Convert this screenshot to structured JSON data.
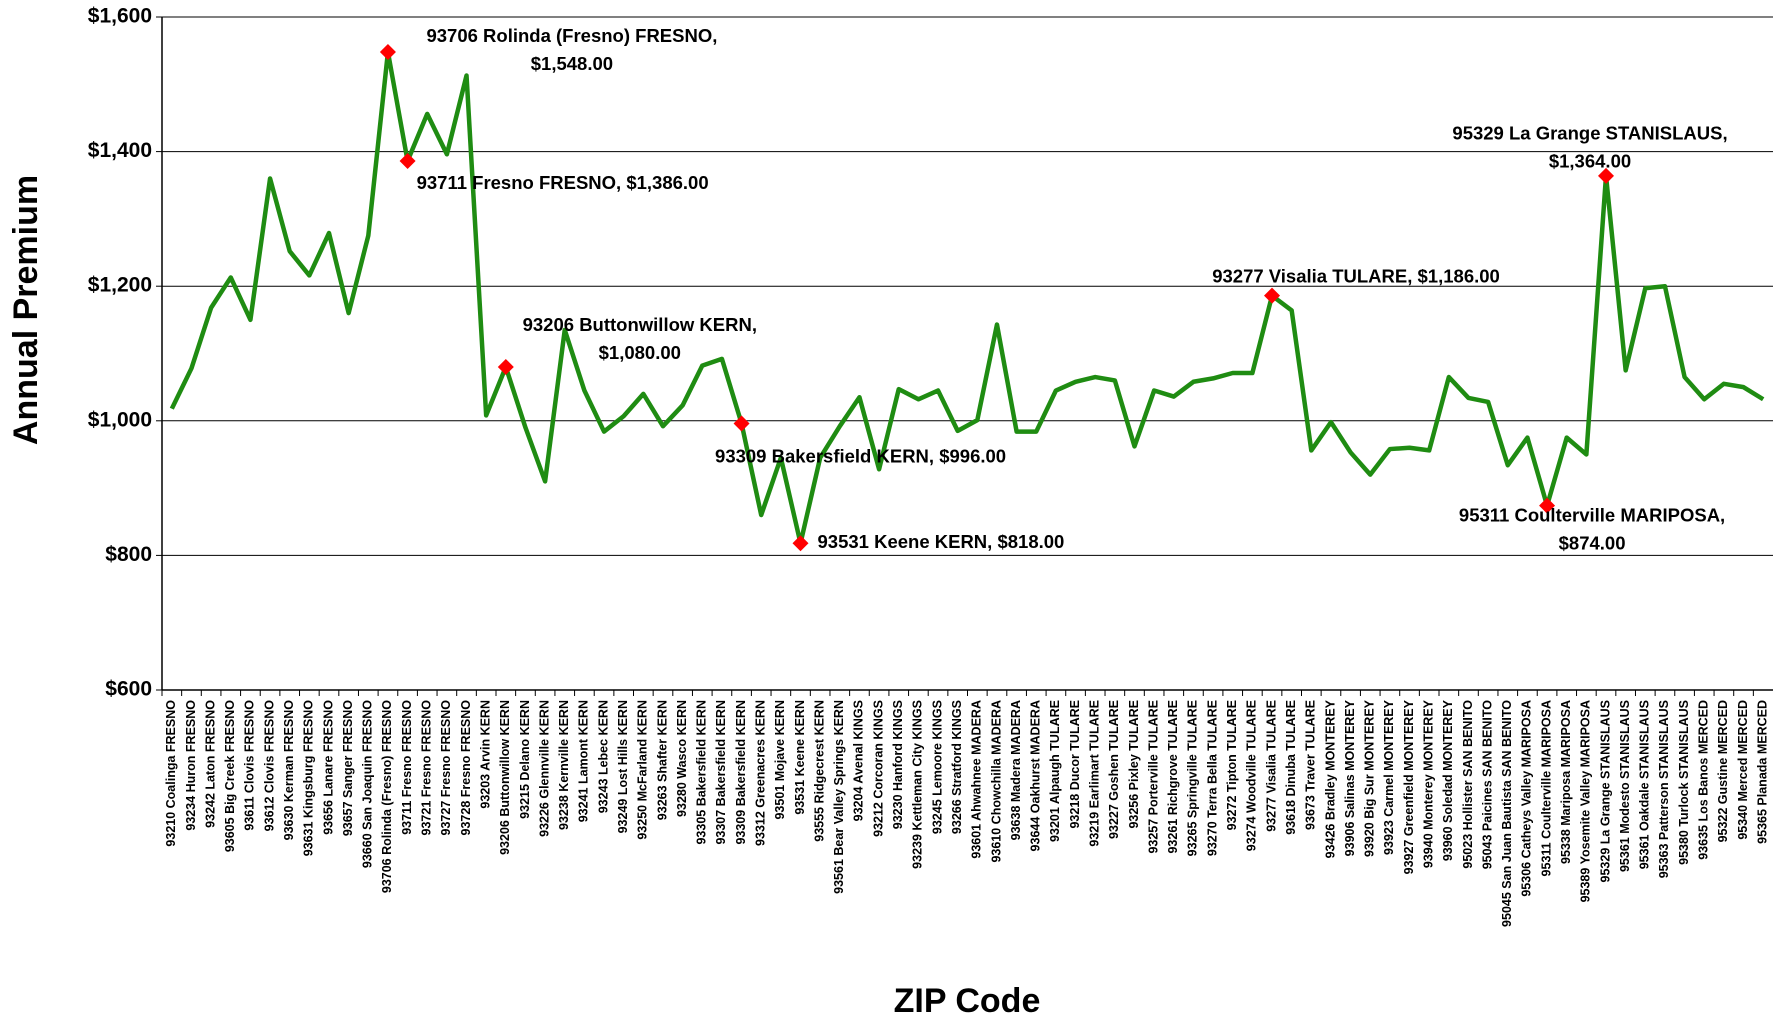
{
  "chart_data": {
    "type": "line",
    "xlabel": "ZIP Code",
    "ylabel": "Annual Premium",
    "ylim": [
      600,
      1600
    ],
    "yticks": [
      {
        "value": 600,
        "label": "$600"
      },
      {
        "value": 800,
        "label": "$800"
      },
      {
        "value": 1000,
        "label": "$1,000"
      },
      {
        "value": 1200,
        "label": "$1,200"
      },
      {
        "value": 1400,
        "label": "$1,400"
      },
      {
        "value": 1600,
        "label": "$1,600"
      }
    ],
    "grid": true,
    "color": "#1f8c12",
    "marker_color": "#ff0000",
    "categories": [
      "93210 Coalinga FRESNO",
      "93234 Huron FRESNO",
      "93242 Laton FRESNO",
      "93605 Big Creek FRESNO",
      "93611 Clovis FRESNO",
      "93612 Clovis FRESNO",
      "93630 Kerman FRESNO",
      "93631 Kingsburg FRESNO",
      "93656 Lanare FRESNO",
      "93657 Sanger FRESNO",
      "93660 San Joaquin FRESNO",
      "93706 Rolinda (Fresno) FRESNO",
      "93711 Fresno FRESNO",
      "93721 Fresno FRESNO",
      "93727 Fresno FRESNO",
      "93728 Fresno FRESNO",
      "93203 Arvin KERN",
      "93206 Buttonwillow KERN",
      "93215 Delano KERN",
      "93226 Glennville KERN",
      "93238 Kernville KERN",
      "93241 Lamont KERN",
      "93243 Lebec KERN",
      "93249 Lost Hills KERN",
      "93250 McFarland KERN",
      "93263 Shafter KERN",
      "93280 Wasco KERN",
      "93305 Bakersfield KERN",
      "93307 Bakersfield KERN",
      "93309 Bakersfield KERN",
      "93312 Greenacres KERN",
      "93501 Mojave KERN",
      "93531 Keene KERN",
      "93555 Ridgecrest KERN",
      "93561 Bear Valley Springs KERN",
      "93204 Avenal KINGS",
      "93212 Corcoran KINGS",
      "93230 Hanford KINGS",
      "93239 Kettleman City KINGS",
      "93245 Lemoore KINGS",
      "93266 Stratford KINGS",
      "93601 Ahwahnee MADERA",
      "93610 Chowchilla MADERA",
      "93638 Madera MADERA",
      "93644 Oakhurst MADERA",
      "93201 Alpaugh TULARE",
      "93218 Ducor TULARE",
      "93219 Earlimart TULARE",
      "93227 Goshen TULARE",
      "93256 Pixley TULARE",
      "93257 Porterville TULARE",
      "93261 Richgrove TULARE",
      "93265 Springville TULARE",
      "93270 Terra Bella TULARE",
      "93272 Tipton TULARE",
      "93274 Woodville TULARE",
      "93277 Visalia TULARE",
      "93618 Dinuba TULARE",
      "93673 Traver TULARE",
      "93426 Bradley MONTEREY",
      "93906 Salinas MONTEREY",
      "93920 Big Sur MONTEREY",
      "93923 Carmel MONTEREY",
      "93927 Greenfield MONTEREY",
      "93940 Monterey MONTEREY",
      "93960 Soledad MONTEREY",
      "95023 Hollister SAN BENITO",
      "95043 Paicines SAN BENITO",
      "95045 San Juan Bautista SAN BENITO",
      "95306 Catheys Valley MARIPOSA",
      "95311 Coulterville MARIPOSA",
      "95338 Mariposa MARIPOSA",
      "95389 Yosemite Valley MARIPOSA",
      "95329 La Grange STANISLAUS",
      "95361 Modesto STANISLAUS",
      "95361 Oakdale STANISLAUS",
      "95363 Patterson STANISLAUS",
      "95380 Turlock STANISLAUS",
      "93635 Los Banos MERCED",
      "95322 Gustine MERCED",
      "95340 Merced MERCED",
      "95365 Planada MERCED"
    ],
    "values": [
      1018,
      1078,
      1168,
      1213,
      1150,
      1360,
      1252,
      1216,
      1279,
      1160,
      1275,
      1548,
      1386,
      1456,
      1396,
      1513,
      1008,
      1080,
      990,
      910,
      1135,
      1045,
      984,
      1007,
      1040,
      992,
      1023,
      1082,
      1092,
      996,
      860,
      945,
      818,
      945,
      992,
      1035,
      928,
      1047,
      1032,
      1045,
      985,
      1001,
      1143,
      984,
      984,
      1045,
      1058,
      1065,
      1060,
      962,
      1045,
      1036,
      1058,
      1063,
      1071,
      1071,
      1186,
      1164,
      956,
      998,
      953,
      920,
      958,
      960,
      956,
      1065,
      1034,
      1028,
      934,
      975,
      874,
      975,
      950,
      1364,
      1075,
      1197,
      1200,
      1065,
      1032,
      1055,
      1050,
      1032
    ],
    "annotations": [
      {
        "x": "93706 Rolinda (Fresno) FRESNO",
        "lines": [
          "93706 Rolinda (Fresno) FRESNO,",
          "$1,548.00"
        ]
      },
      {
        "x": "93711 Fresno FRESNO",
        "lines": [
          "93711 Fresno FRESNO, $1,386.00"
        ]
      },
      {
        "x": "93206 Buttonwillow KERN",
        "lines": [
          "93206 Buttonwillow KERN,",
          "$1,080.00"
        ]
      },
      {
        "x": "93309 Bakersfield KERN",
        "lines": [
          "93309 Bakersfield KERN, $996.00"
        ]
      },
      {
        "x": "93531 Keene KERN",
        "lines": [
          "93531 Keene KERN, $818.00"
        ]
      },
      {
        "x": "93277 Visalia TULARE",
        "lines": [
          "93277 Visalia TULARE, $1,186.00"
        ]
      },
      {
        "x": "95311 Coulterville MARIPOSA",
        "lines": [
          "95311 Coulterville MARIPOSA,",
          "$874.00"
        ]
      },
      {
        "x": "95329 La Grange STANISLAUS",
        "lines": [
          "95329 La Grange STANISLAUS,",
          "$1,364.00"
        ]
      }
    ]
  }
}
